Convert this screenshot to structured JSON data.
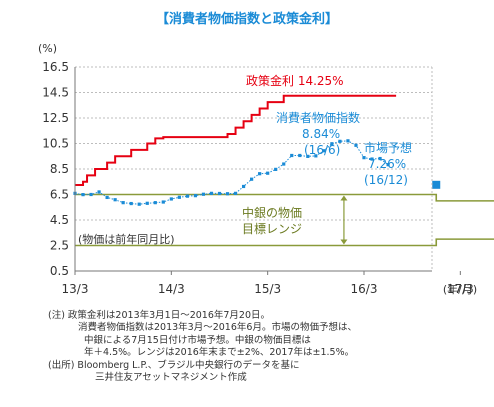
{
  "title": "【消費者物価指数と政策金利】",
  "chart_data": {
    "type": "line",
    "title": "【消費者物価指数と政策金利】",
    "y_unit": "(%)",
    "x_unit": "(年/月)",
    "ylim": [
      0.5,
      16.5
    ],
    "yticks": [
      0.5,
      2.5,
      4.5,
      6.5,
      8.5,
      10.5,
      12.5,
      14.5,
      16.5
    ],
    "ytick_labels": [
      "0.5",
      "2.5",
      "4.5",
      "6.5",
      "8.5",
      "10.5",
      "12.5",
      "14.5",
      "16.5"
    ],
    "xlim": [
      0,
      48
    ],
    "xticks": [
      0,
      12,
      24,
      36,
      48
    ],
    "xtick_labels": [
      "13/3",
      "14/3",
      "15/3",
      "16/3",
      "17/3"
    ],
    "grid": "horizontal",
    "series": [
      {
        "name": "政策金利",
        "color": "#e60012",
        "style": "step",
        "x": [
          0,
          1,
          1.5,
          2.5,
          4,
          5,
          6,
          7,
          8,
          9,
          9.5,
          10,
          11,
          18,
          19,
          20,
          20.5,
          21,
          22,
          22.5,
          23,
          24,
          25,
          26,
          27,
          28,
          40
        ],
        "y": [
          7.25,
          7.5,
          8.0,
          8.5,
          9.0,
          9.5,
          9.5,
          10.0,
          10.0,
          10.5,
          10.5,
          10.9,
          11.0,
          11.0,
          11.25,
          11.75,
          11.75,
          12.25,
          12.75,
          12.75,
          13.25,
          13.75,
          13.75,
          14.25,
          14.25,
          14.25,
          14.25
        ]
      },
      {
        "name": "消費者物価指数",
        "color": "#1a8bd6",
        "style": "line-markers",
        "x": [
          0,
          1,
          2,
          3,
          4,
          5,
          6,
          7,
          8,
          9,
          10,
          11,
          12,
          13,
          14,
          15,
          16,
          17,
          18,
          19,
          20,
          21,
          22,
          23,
          24,
          25,
          26,
          27,
          28,
          29,
          30,
          31,
          32,
          33,
          34,
          35,
          36,
          37,
          38,
          39
        ],
        "y": [
          6.59,
          6.49,
          6.5,
          6.7,
          6.27,
          6.09,
          5.86,
          5.79,
          5.74,
          5.81,
          5.86,
          5.91,
          6.15,
          6.28,
          6.37,
          6.41,
          6.52,
          6.59,
          6.58,
          6.56,
          6.59,
          7.13,
          7.7,
          8.13,
          8.17,
          8.47,
          8.89,
          9.56,
          9.56,
          9.49,
          9.53,
          9.93,
          10.48,
          10.67,
          10.71,
          10.36,
          9.39,
          9.28,
          9.32,
          8.84
        ]
      },
      {
        "name": "市場予想",
        "color": "#1a8bd6",
        "style": "marker",
        "x": [
          45
        ],
        "y": [
          7.26
        ]
      },
      {
        "name": "中銀の物価目標レンジ上限",
        "color": "#8a9a3a",
        "style": "step",
        "x": [
          0,
          45,
          45,
          59
        ],
        "y": [
          6.5,
          6.5,
          6.0,
          6.0
        ]
      },
      {
        "name": "中銀の物価目標レンジ下限",
        "color": "#8a9a3a",
        "style": "step",
        "x": [
          0,
          45,
          45,
          59
        ],
        "y": [
          2.5,
          2.5,
          3.0,
          3.0
        ]
      }
    ],
    "annotations": {
      "rate_label": "政策金利 14.25%",
      "cpi_label": "消費者物価指数",
      "cpi_value": "8.84%",
      "cpi_date": "(16/6)",
      "forecast_label": "市場予想",
      "forecast_value": "7.26%",
      "forecast_date": "(16/12)",
      "band_label_1": "中銀の物価",
      "band_label_2": "目標レンジ",
      "yoy_note": "(物価は前年同月比)"
    }
  },
  "notes": [
    "(注) 政策金利は2013年3月1日～2016年7月20日。",
    "消費者物価指数は2013年3月～2016年6月。市場の物価予想は、",
    "中銀による7月15日付け市場予想。中銀の物価目標は",
    "年＋4.5%。レンジは2016年末まで±2%、2017年は±1.5%。",
    "(出所) Bloomberg L.P.、ブラジル中央銀行のデータを基に",
    "三井住友アセットマネジメント作成"
  ]
}
